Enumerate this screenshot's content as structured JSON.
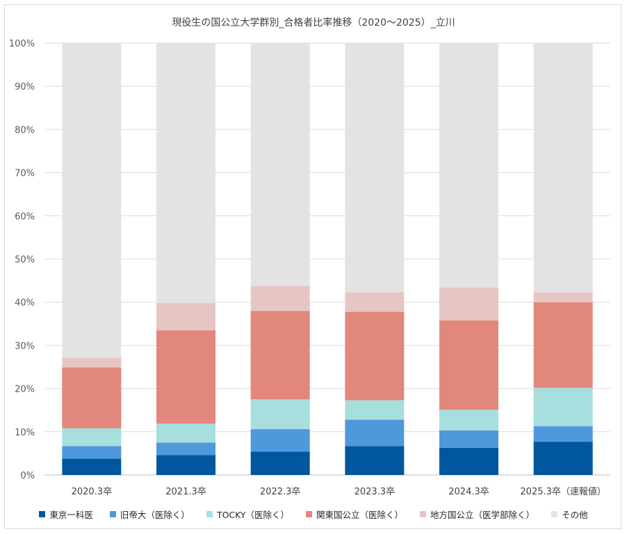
{
  "chart_data": {
    "type": "bar",
    "stacked": true,
    "title": "現役生の国公立大学群別_合格者比率推移（2020〜2025）_立川",
    "xlabel": "",
    "ylabel": "",
    "ylim": [
      0,
      100
    ],
    "y_ticks": [
      "0%",
      "10%",
      "20%",
      "30%",
      "40%",
      "50%",
      "60%",
      "70%",
      "80%",
      "90%",
      "100%"
    ],
    "categories": [
      "2020.3卒",
      "2021.3卒",
      "2022.3卒",
      "2023.3卒",
      "2024.3卒",
      "2025.3卒（速報値）"
    ],
    "series": [
      {
        "name": "東京一科医",
        "color": "#00579e",
        "values": [
          3.8,
          4.6,
          5.4,
          6.7,
          6.3,
          7.7
        ]
      },
      {
        "name": "旧帝大（医除く）",
        "color": "#4f98dc",
        "values": [
          2.9,
          2.9,
          5.2,
          6.1,
          4.0,
          3.6
        ]
      },
      {
        "name": "TOCKY（医除く）",
        "color": "#a7dede",
        "values": [
          4.1,
          4.4,
          6.9,
          4.5,
          4.8,
          8.9
        ]
      },
      {
        "name": "関東国公立（医除く）",
        "color": "#e2877c",
        "values": [
          14.1,
          21.6,
          20.5,
          20.5,
          20.7,
          19.8
        ]
      },
      {
        "name": "地方国公立（医学部除く）",
        "color": "#e6c6c3",
        "values": [
          2.3,
          6.3,
          5.8,
          4.5,
          7.6,
          2.3
        ]
      },
      {
        "name": "その他",
        "color": "#e3e3e6",
        "values": [
          72.8,
          60.2,
          56.2,
          57.7,
          56.6,
          57.7
        ]
      }
    ],
    "grid": true,
    "legend_position": "bottom"
  }
}
